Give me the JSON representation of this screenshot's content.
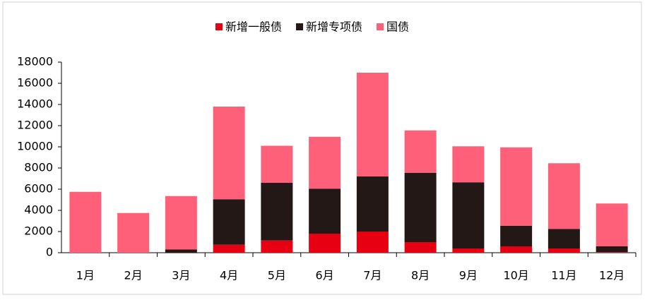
{
  "chart_data": {
    "type": "stacked-bar",
    "categories": [
      "1月",
      "2月",
      "3月",
      "4月",
      "5月",
      "6月",
      "7月",
      "8月",
      "9月",
      "10月",
      "11月",
      "12月"
    ],
    "series": [
      {
        "name": "新增一般债",
        "color": "#e60012",
        "values": [
          0,
          0,
          0,
          750,
          1150,
          1800,
          2000,
          1000,
          400,
          600,
          400,
          50
        ]
      },
      {
        "name": "新增专项债",
        "color": "#231815",
        "values": [
          0,
          0,
          300,
          4300,
          5450,
          4250,
          5200,
          6550,
          6250,
          1950,
          1850,
          550
        ]
      },
      {
        "name": "国债",
        "color": "#ff6079",
        "values": [
          5750,
          3750,
          5050,
          8750,
          3500,
          4900,
          9800,
          4000,
          3400,
          7400,
          6200,
          4050
        ]
      }
    ],
    "ylim": [
      0,
      18000
    ],
    "yticks": [
      0,
      2000,
      4000,
      6000,
      8000,
      10000,
      12000,
      14000,
      16000,
      18000
    ],
    "legend": "top"
  }
}
